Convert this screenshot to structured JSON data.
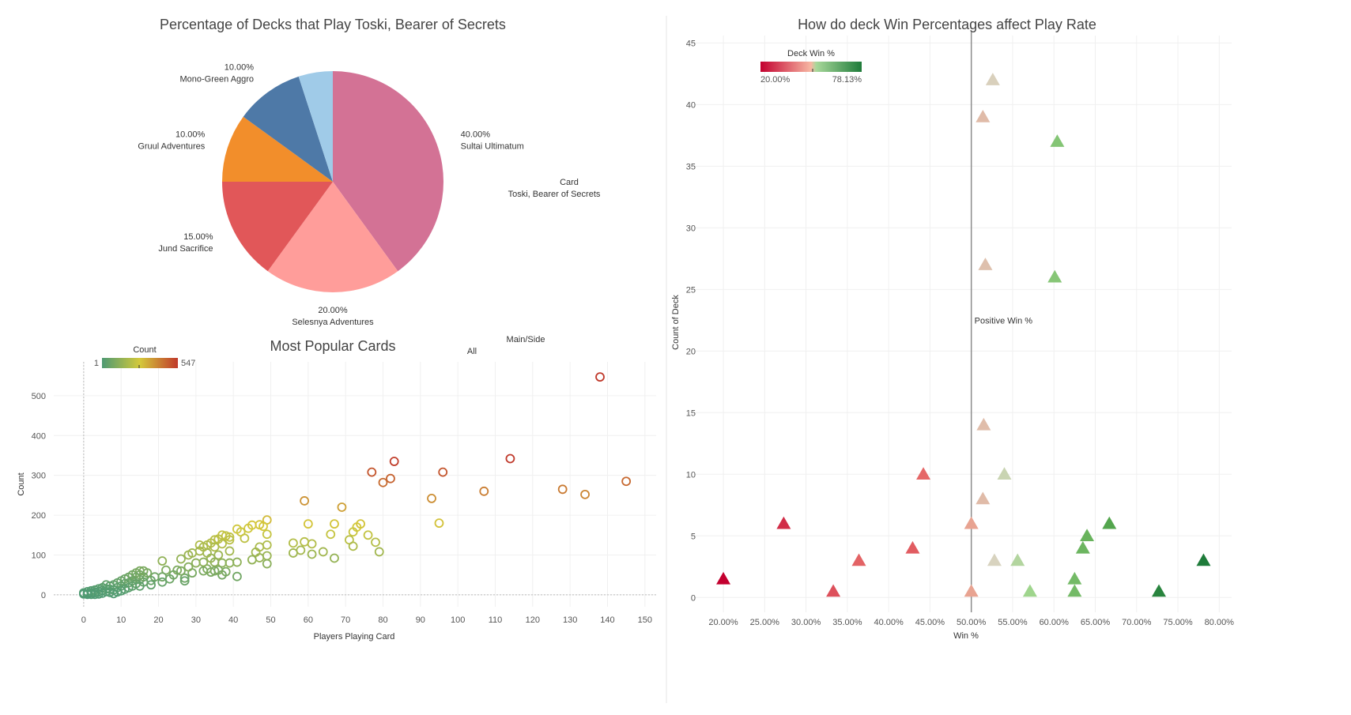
{
  "pie_chart": {
    "title": "Percentage of Decks that Play Toski, Bearer of Secrets",
    "legend": {
      "title": "Card",
      "value": "Toski, Bearer of Secrets"
    },
    "slices": [
      {
        "name": "Sultai Ultimatum",
        "value": 40,
        "pct_label": "40.00%",
        "color": "#d37295"
      },
      {
        "name": "Selesnya Adventures",
        "value": 20,
        "pct_label": "20.00%",
        "color": "#ff9d9a"
      },
      {
        "name": "Jund Sacrifice",
        "value": 15,
        "pct_label": "15.00%",
        "color": "#e15759"
      },
      {
        "name": "Gruul Adventures",
        "value": 10,
        "pct_label": "10.00%",
        "color": "#f28e2b"
      },
      {
        "name": "Mono-Green Aggro",
        "value": 10,
        "pct_label": "10.00%",
        "color": "#4e79a7"
      },
      {
        "name": "",
        "value": 5,
        "pct_label": "",
        "color": "#a0cbe8"
      }
    ]
  },
  "filter": {
    "title": "Main/Side",
    "value": "All"
  },
  "chart_data": [
    {
      "type": "pie",
      "title": "Percentage of Decks that Play Toski, Bearer of Secrets",
      "categories": [
        "Sultai Ultimatum",
        "Selesnya Adventures",
        "Jund Sacrifice",
        "Gruul Adventures",
        "Mono-Green Aggro",
        ""
      ],
      "values": [
        40,
        20,
        15,
        10,
        10,
        5
      ]
    },
    {
      "type": "scatter",
      "title": "Most Popular Cards",
      "xlabel": "Players Playing Card",
      "ylabel": "Count",
      "xlim": [
        -8,
        153
      ],
      "ylim": [
        -30,
        585
      ],
      "xticks": [
        0,
        10,
        20,
        30,
        40,
        50,
        60,
        70,
        80,
        90,
        100,
        110,
        120,
        130,
        140,
        150
      ],
      "yticks": [
        0,
        100,
        200,
        300,
        400,
        500
      ],
      "color_legend": {
        "title": "Count",
        "min_label": "1",
        "max_label": "547",
        "min": 1,
        "max": 547
      },
      "points": [
        [
          138,
          547
        ],
        [
          145,
          285
        ],
        [
          134,
          252
        ],
        [
          128,
          265
        ],
        [
          114,
          342
        ],
        [
          107,
          260
        ],
        [
          96,
          308
        ],
        [
          95,
          180
        ],
        [
          93,
          242
        ],
        [
          83,
          335
        ],
        [
          82,
          292
        ],
        [
          80,
          282
        ],
        [
          77,
          308
        ],
        [
          79,
          108
        ],
        [
          78,
          132
        ],
        [
          76,
          150
        ],
        [
          73,
          170
        ],
        [
          74,
          178
        ],
        [
          72,
          158
        ],
        [
          71,
          138
        ],
        [
          72,
          122
        ],
        [
          69,
          220
        ],
        [
          67,
          178
        ],
        [
          67,
          92
        ],
        [
          66,
          152
        ],
        [
          64,
          108
        ],
        [
          61,
          128
        ],
        [
          61,
          102
        ],
        [
          60,
          178
        ],
        [
          59,
          236
        ],
        [
          59,
          133
        ],
        [
          58,
          112
        ],
        [
          56,
          130
        ],
        [
          56,
          105
        ],
        [
          49,
          188
        ],
        [
          49,
          152
        ],
        [
          49,
          125
        ],
        [
          49,
          98
        ],
        [
          49,
          78
        ],
        [
          48,
          172
        ],
        [
          47,
          176
        ],
        [
          47,
          120
        ],
        [
          47,
          93
        ],
        [
          46,
          107
        ],
        [
          45,
          175
        ],
        [
          45,
          88
        ],
        [
          44,
          167
        ],
        [
          43,
          142
        ],
        [
          42,
          158
        ],
        [
          41,
          165
        ],
        [
          41,
          82
        ],
        [
          41,
          46
        ],
        [
          39,
          145
        ],
        [
          39,
          138
        ],
        [
          39,
          110
        ],
        [
          39,
          80
        ],
        [
          38,
          148
        ],
        [
          38,
          58
        ],
        [
          37,
          150
        ],
        [
          37,
          128
        ],
        [
          37,
          80
        ],
        [
          37,
          50
        ],
        [
          36,
          140
        ],
        [
          36,
          100
        ],
        [
          36,
          62
        ],
        [
          35,
          138
        ],
        [
          35,
          120
        ],
        [
          35,
          82
        ],
        [
          35,
          60
        ],
        [
          34,
          130
        ],
        [
          34,
          92
        ],
        [
          34,
          57
        ],
        [
          33,
          125
        ],
        [
          33,
          105
        ],
        [
          33,
          65
        ],
        [
          32,
          120
        ],
        [
          32,
          82
        ],
        [
          32,
          60
        ],
        [
          31,
          125
        ],
        [
          31,
          110
        ],
        [
          30,
          80
        ],
        [
          29,
          105
        ],
        [
          29,
          55
        ],
        [
          28,
          100
        ],
        [
          28,
          70
        ],
        [
          27,
          42
        ],
        [
          27,
          35
        ],
        [
          26,
          90
        ],
        [
          26,
          60
        ],
        [
          25,
          62
        ],
        [
          24,
          50
        ],
        [
          23,
          40
        ],
        [
          22,
          62
        ],
        [
          21,
          85
        ],
        [
          21,
          45
        ],
        [
          21,
          32
        ],
        [
          19,
          45
        ],
        [
          18,
          36
        ],
        [
          18,
          25
        ],
        [
          17,
          55
        ],
        [
          16,
          60
        ],
        [
          16,
          45
        ],
        [
          16,
          32
        ],
        [
          15,
          60
        ],
        [
          15,
          50
        ],
        [
          15,
          38
        ],
        [
          15,
          22
        ],
        [
          14,
          55
        ],
        [
          14,
          44
        ],
        [
          14,
          28
        ],
        [
          13,
          50
        ],
        [
          13,
          35
        ],
        [
          13,
          22
        ],
        [
          12,
          44
        ],
        [
          12,
          30
        ],
        [
          12,
          18
        ],
        [
          11,
          40
        ],
        [
          11,
          28
        ],
        [
          11,
          14
        ],
        [
          10,
          35
        ],
        [
          10,
          22
        ],
        [
          10,
          10
        ],
        [
          9,
          30
        ],
        [
          9,
          18
        ],
        [
          9,
          7
        ],
        [
          8,
          25
        ],
        [
          8,
          12
        ],
        [
          8,
          3
        ],
        [
          7,
          22
        ],
        [
          7,
          14
        ],
        [
          7,
          6
        ],
        [
          6,
          25
        ],
        [
          6,
          15
        ],
        [
          6,
          8
        ],
        [
          5,
          18
        ],
        [
          5,
          11
        ],
        [
          5,
          4
        ],
        [
          4,
          15
        ],
        [
          4,
          8
        ],
        [
          4,
          2
        ],
        [
          3,
          12
        ],
        [
          3,
          6
        ],
        [
          3,
          1
        ],
        [
          2,
          10
        ],
        [
          2,
          5
        ],
        [
          2,
          1
        ],
        [
          1,
          8
        ],
        [
          1,
          3
        ],
        [
          1,
          1
        ],
        [
          0,
          5
        ],
        [
          0,
          2
        ]
      ]
    },
    {
      "type": "scatter",
      "title": "How do deck Win Percentages affect Play Rate",
      "xlabel": "Win %",
      "ylabel": "Count of Deck",
      "xlim": [
        15.5,
        81.5
      ],
      "ylim": [
        -1.2,
        45.6
      ],
      "xticks": [
        20,
        25,
        30,
        35,
        40,
        45,
        50,
        55,
        60,
        65,
        70,
        75,
        80
      ],
      "xtick_labels": [
        "20.00%",
        "25.00%",
        "30.00%",
        "35.00%",
        "40.00%",
        "45.00%",
        "50.00%",
        "55.00%",
        "60.00%",
        "65.00%",
        "70.00%",
        "75.00%",
        "80.00%"
      ],
      "yticks": [
        0,
        5,
        10,
        15,
        20,
        25,
        30,
        35,
        40,
        45
      ],
      "reference_line": {
        "x": 50,
        "label": "Positive Win %"
      },
      "color_legend": {
        "title": "Deck Win %",
        "min_label": "20.00%",
        "max_label": "78.13%",
        "min": 20,
        "max": 78.13
      },
      "points": [
        [
          52.6,
          42
        ],
        [
          51.4,
          39
        ],
        [
          60.4,
          37
        ],
        [
          51.7,
          27
        ],
        [
          60.1,
          26
        ],
        [
          51.5,
          14
        ],
        [
          44.2,
          10
        ],
        [
          54,
          10
        ],
        [
          51.4,
          8
        ],
        [
          27.3,
          6
        ],
        [
          50,
          6
        ],
        [
          66.7,
          6
        ],
        [
          64,
          5
        ],
        [
          42.9,
          4
        ],
        [
          63.5,
          4
        ],
        [
          36.4,
          3
        ],
        [
          52.8,
          3
        ],
        [
          55.6,
          3
        ],
        [
          78.1,
          3
        ],
        [
          20,
          1.5
        ],
        [
          62.5,
          1.5
        ],
        [
          33.3,
          0.5
        ],
        [
          50,
          0.5
        ],
        [
          57.1,
          0.5
        ],
        [
          62.5,
          0.5
        ],
        [
          72.7,
          0.5
        ]
      ]
    }
  ]
}
